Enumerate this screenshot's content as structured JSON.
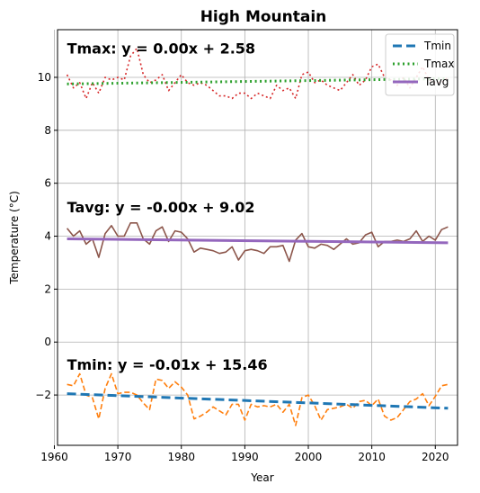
{
  "chart_data": {
    "type": "line",
    "title": "High Mountain",
    "xlabel": "Year",
    "ylabel": "Temperature (°C)",
    "xlim": [
      1960.5,
      2023.5
    ],
    "ylim": [
      -3.9,
      11.8
    ],
    "xticks": [
      1960,
      1970,
      1980,
      1990,
      2000,
      2010,
      2020
    ],
    "yticks": [
      -2,
      0,
      2,
      4,
      6,
      8,
      10
    ],
    "grid": true,
    "legend_position": "top-right",
    "years": [
      1962,
      1963,
      1964,
      1965,
      1966,
      1967,
      1968,
      1969,
      1970,
      1971,
      1972,
      1973,
      1974,
      1975,
      1976,
      1977,
      1978,
      1979,
      1980,
      1981,
      1982,
      1983,
      1984,
      1985,
      1986,
      1987,
      1988,
      1989,
      1990,
      1991,
      1992,
      1993,
      1994,
      1995,
      1996,
      1997,
      1998,
      1999,
      2000,
      2001,
      2002,
      2003,
      2004,
      2005,
      2006,
      2007,
      2008,
      2009,
      2010,
      2011,
      2012,
      2013,
      2014,
      2015,
      2016,
      2017,
      2018,
      2019,
      2020,
      2021,
      2022
    ],
    "raw_series": [
      {
        "key": "tmax",
        "color": "#d62728",
        "dash": "dotted",
        "values": [
          10.1,
          9.6,
          9.8,
          9.2,
          9.8,
          9.4,
          10.0,
          9.9,
          10.0,
          9.9,
          10.8,
          11.1,
          10.1,
          9.8,
          9.9,
          10.1,
          9.5,
          9.8,
          10.1,
          9.8,
          9.7,
          9.8,
          9.7,
          9.5,
          9.3,
          9.3,
          9.2,
          9.4,
          9.4,
          9.2,
          9.4,
          9.3,
          9.2,
          9.7,
          9.5,
          9.6,
          9.2,
          10.1,
          10.2,
          9.8,
          9.9,
          9.7,
          9.6,
          9.5,
          9.8,
          10.1,
          9.7,
          9.9,
          10.4,
          10.5,
          10.0,
          9.9,
          9.7,
          10.0,
          9.6,
          10.0,
          10.4,
          9.9,
          9.8,
          9.8,
          10.0
        ]
      },
      {
        "key": "tavg",
        "color": "#8c564b",
        "dash": "solid",
        "values": [
          4.3,
          4.0,
          4.2,
          3.7,
          3.9,
          3.2,
          4.1,
          4.4,
          4.0,
          4.0,
          4.5,
          4.5,
          3.9,
          3.7,
          4.2,
          4.35,
          3.8,
          4.2,
          4.15,
          3.9,
          3.4,
          3.55,
          3.5,
          3.45,
          3.35,
          3.4,
          3.6,
          3.1,
          3.45,
          3.5,
          3.45,
          3.35,
          3.6,
          3.6,
          3.65,
          3.05,
          3.85,
          4.1,
          3.6,
          3.55,
          3.7,
          3.65,
          3.5,
          3.7,
          3.9,
          3.7,
          3.75,
          4.05,
          4.15,
          3.6,
          3.8,
          3.8,
          3.85,
          3.8,
          3.9,
          4.2,
          3.8,
          4.0,
          3.85,
          4.25,
          4.35
        ]
      },
      {
        "key": "tmin",
        "color": "#ff7f0e",
        "dash": "dashed",
        "values": [
          -1.6,
          -1.65,
          -1.2,
          -2.0,
          -2.1,
          -2.9,
          -1.75,
          -1.2,
          -1.95,
          -1.9,
          -1.9,
          -2.0,
          -2.3,
          -2.55,
          -1.4,
          -1.45,
          -1.75,
          -1.5,
          -1.7,
          -2.0,
          -2.9,
          -2.8,
          -2.65,
          -2.45,
          -2.6,
          -2.75,
          -2.35,
          -2.35,
          -2.95,
          -2.35,
          -2.45,
          -2.4,
          -2.45,
          -2.35,
          -2.65,
          -2.35,
          -3.15,
          -2.1,
          -2.0,
          -2.4,
          -2.95,
          -2.55,
          -2.5,
          -2.45,
          -2.35,
          -2.5,
          -2.25,
          -2.2,
          -2.4,
          -2.15,
          -2.8,
          -2.95,
          -2.85,
          -2.55,
          -2.25,
          -2.15,
          -1.95,
          -2.4,
          -2.05,
          -1.65,
          -1.6
        ]
      }
    ],
    "trend_series": [
      {
        "name": "Tmin",
        "color": "#1f77b4",
        "dash": "dashed",
        "width": 3,
        "y": [
          -1.95,
          -2.5
        ]
      },
      {
        "name": "Tmax",
        "color": "#2ca02c",
        "dash": "dotted",
        "width": 3,
        "y": [
          9.75,
          9.95
        ]
      },
      {
        "name": "Tavg",
        "color": "#9467bd",
        "dash": "solid",
        "width": 3,
        "y": [
          3.9,
          3.75
        ]
      }
    ],
    "annotations": [
      {
        "text": "Tmax: y = 0.00x + 2.58",
        "x": 1962,
        "y": 10.9
      },
      {
        "text": "Tavg: y = -0.00x + 9.02",
        "x": 1962,
        "y": 4.9
      },
      {
        "text": "Tmin: y = -0.01x + 15.46",
        "x": 1962,
        "y": -1.05
      }
    ]
  }
}
